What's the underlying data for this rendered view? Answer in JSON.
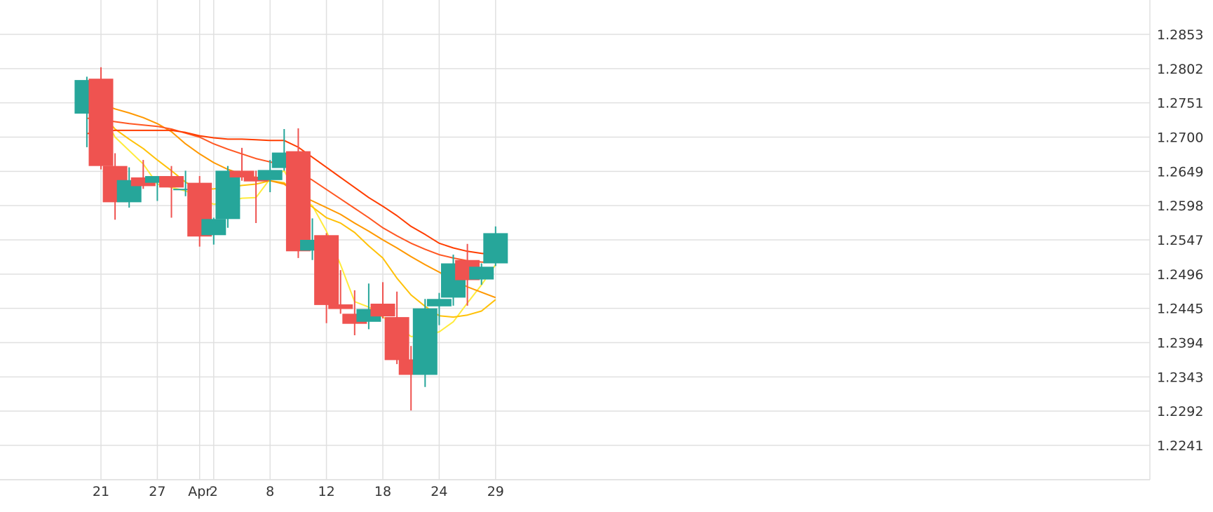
{
  "chart_data": {
    "type": "candlestick",
    "y_ticks": [
      "1.2853",
      "1.2802",
      "1.2751",
      "1.2700",
      "1.2649",
      "1.2598",
      "1.2547",
      "1.2496",
      "1.2445",
      "1.2394",
      "1.2343",
      "1.2292",
      "1.2241"
    ],
    "y_tick_values": [
      1.2853,
      1.2802,
      1.2751,
      1.27,
      1.2649,
      1.2598,
      1.2547,
      1.2496,
      1.2445,
      1.2394,
      1.2343,
      1.2292,
      1.2241
    ],
    "x_ticks": [
      {
        "label": "21",
        "index": 1
      },
      {
        "label": "27",
        "index": 5
      },
      {
        "label": "Apr",
        "index": 8
      },
      {
        "label": "2",
        "index": 9
      },
      {
        "label": "8",
        "index": 13
      },
      {
        "label": "12",
        "index": 17
      },
      {
        "label": "18",
        "index": 21
      },
      {
        "label": "24",
        "index": 25
      },
      {
        "label": "29",
        "index": 29
      }
    ],
    "ylim": [
      1.219,
      1.29
    ],
    "xlim": [
      -0.95,
      30.7
    ],
    "grid": true,
    "colors": {
      "up": "#26a69a",
      "down": "#ef5350",
      "grid": "#e0e0e0"
    },
    "candles": [
      {
        "o": 1.2735,
        "h": 1.279,
        "l": 1.2685,
        "c": 1.2785
      },
      {
        "o": 1.2787,
        "h": 1.2804,
        "l": 1.2652,
        "c": 1.2657
      },
      {
        "o": 1.2657,
        "h": 1.2676,
        "l": 1.2577,
        "c": 1.2603
      },
      {
        "o": 1.2603,
        "h": 1.2655,
        "l": 1.2595,
        "c": 1.2636
      },
      {
        "o": 1.264,
        "h": 1.2666,
        "l": 1.2623,
        "c": 1.2627
      },
      {
        "o": 1.2632,
        "h": 1.2642,
        "l": 1.2605,
        "c": 1.2642
      },
      {
        "o": 1.2642,
        "h": 1.2657,
        "l": 1.258,
        "c": 1.2625
      },
      {
        "o": 1.2623,
        "h": 1.265,
        "l": 1.2612,
        "c": 1.2623
      },
      {
        "o": 1.2632,
        "h": 1.2642,
        "l": 1.2537,
        "c": 1.2552
      },
      {
        "o": 1.2554,
        "h": 1.258,
        "l": 1.254,
        "c": 1.2578
      },
      {
        "o": 1.2578,
        "h": 1.2657,
        "l": 1.2565,
        "c": 1.265
      },
      {
        "o": 1.265,
        "h": 1.2684,
        "l": 1.2635,
        "c": 1.264
      },
      {
        "o": 1.2641,
        "h": 1.265,
        "l": 1.2572,
        "c": 1.2634
      },
      {
        "o": 1.2636,
        "h": 1.2666,
        "l": 1.2618,
        "c": 1.2651
      },
      {
        "o": 1.2654,
        "h": 1.2712,
        "l": 1.265,
        "c": 1.2677
      },
      {
        "o": 1.2679,
        "h": 1.2713,
        "l": 1.252,
        "c": 1.253
      },
      {
        "o": 1.2531,
        "h": 1.2579,
        "l": 1.2517,
        "c": 1.2547
      },
      {
        "o": 1.2554,
        "h": 1.2557,
        "l": 1.2423,
        "c": 1.245
      },
      {
        "o": 1.2451,
        "h": 1.2502,
        "l": 1.2437,
        "c": 1.2444
      },
      {
        "o": 1.2437,
        "h": 1.2472,
        "l": 1.2405,
        "c": 1.2422
      },
      {
        "o": 1.2425,
        "h": 1.2482,
        "l": 1.2414,
        "c": 1.2444
      },
      {
        "o": 1.2452,
        "h": 1.2484,
        "l": 1.243,
        "c": 1.2433
      },
      {
        "o": 1.2432,
        "h": 1.247,
        "l": 1.2362,
        "c": 1.2368
      },
      {
        "o": 1.2369,
        "h": 1.2389,
        "l": 1.2293,
        "c": 1.2346
      },
      {
        "o": 1.2346,
        "h": 1.2459,
        "l": 1.2328,
        "c": 1.2445
      },
      {
        "o": 1.2448,
        "h": 1.2468,
        "l": 1.242,
        "c": 1.2459
      },
      {
        "o": 1.2461,
        "h": 1.2525,
        "l": 1.2449,
        "c": 1.2512
      },
      {
        "o": 1.2517,
        "h": 1.2541,
        "l": 1.2449,
        "c": 1.2487
      },
      {
        "o": 1.2488,
        "h": 1.2512,
        "l": 1.248,
        "c": 1.2507
      },
      {
        "o": 1.2512,
        "h": 1.2567,
        "l": 1.2508,
        "c": 1.2557
      }
    ],
    "series": [
      {
        "color": "#ffeb3b",
        "x": [
          0,
          0.45,
          1,
          1.5,
          2,
          2.5,
          3,
          4,
          5,
          6,
          7,
          8,
          9,
          10,
          11,
          12,
          13,
          14,
          15,
          16,
          17,
          18,
          19,
          20,
          21,
          22,
          23,
          24,
          25,
          26,
          27,
          28,
          29
        ],
        "values": [
          1.277,
          1.276,
          1.2742,
          1.272,
          1.27,
          1.269,
          1.268,
          1.266,
          1.263,
          1.2625,
          1.262,
          1.261,
          1.26,
          1.2604,
          1.2609,
          1.261,
          1.2638,
          1.265,
          1.2612,
          1.2598,
          1.256,
          1.251,
          1.2455,
          1.2447,
          1.2432,
          1.242,
          1.2403,
          1.2405,
          1.241,
          1.2425,
          1.2453,
          1.248,
          1.251
        ]
      },
      {
        "color": "#ffc107",
        "x": [
          0,
          0.45,
          1,
          2,
          3,
          4,
          5,
          6,
          7,
          8,
          9,
          10,
          11,
          12,
          13,
          14,
          15,
          16,
          17,
          18,
          19,
          20,
          21,
          22,
          23,
          24,
          25,
          26,
          27,
          28,
          29
        ],
        "values": [
          1.274,
          1.2737,
          1.2737,
          1.2712,
          1.2697,
          1.2683,
          1.2666,
          1.265,
          1.2633,
          1.2622,
          1.2623,
          1.2625,
          1.2628,
          1.263,
          1.2635,
          1.2632,
          1.261,
          1.2596,
          1.258,
          1.2572,
          1.2558,
          1.2538,
          1.252,
          1.249,
          1.2465,
          1.2448,
          1.2434,
          1.2432,
          1.2435,
          1.2441,
          1.2458
        ]
      },
      {
        "color": "#ff9800",
        "x": [
          0,
          0.45,
          1,
          2,
          3,
          4,
          5,
          6,
          7,
          8,
          9,
          10,
          11,
          12,
          13,
          14,
          15,
          16,
          17,
          18,
          19,
          20,
          21,
          22,
          23,
          24,
          25,
          26,
          27,
          28,
          29
        ],
        "values": [
          1.2755,
          1.2752,
          1.275,
          1.2742,
          1.2736,
          1.2729,
          1.272,
          1.2708,
          1.269,
          1.2675,
          1.2662,
          1.2652,
          1.2645,
          1.264,
          1.2635,
          1.263,
          1.2615,
          1.2605,
          1.2595,
          1.2585,
          1.2572,
          1.256,
          1.2547,
          1.2535,
          1.2522,
          1.251,
          1.2499,
          1.2488,
          1.2477,
          1.2469,
          1.2461
        ]
      },
      {
        "color": "#ff5722",
        "x": [
          0,
          0.45,
          1,
          2,
          3,
          4,
          5,
          6,
          7,
          8,
          9,
          10,
          11,
          12,
          13,
          14,
          15,
          16,
          17,
          18,
          19,
          20,
          21,
          22,
          23,
          24,
          25,
          26,
          27,
          28,
          29
        ],
        "values": [
          1.2728,
          1.2728,
          1.2726,
          1.2723,
          1.272,
          1.2718,
          1.2716,
          1.2712,
          1.2706,
          1.27,
          1.269,
          1.2682,
          1.2675,
          1.2668,
          1.2663,
          1.2658,
          1.2648,
          1.2636,
          1.2622,
          1.2608,
          1.2594,
          1.258,
          1.2565,
          1.2553,
          1.2542,
          1.2533,
          1.2525,
          1.252,
          1.2516,
          1.2514,
          1.2513
        ]
      },
      {
        "color": "#ff3d00",
        "x": [
          0,
          0.45,
          1,
          2,
          3,
          4,
          5,
          6,
          7,
          8,
          9,
          10,
          11,
          12,
          13,
          14,
          15,
          16,
          17,
          18,
          19,
          20,
          21,
          22,
          23,
          24,
          25,
          26,
          27,
          28,
          29
        ],
        "values": [
          1.2705,
          1.2707,
          1.2708,
          1.271,
          1.271,
          1.271,
          1.271,
          1.271,
          1.2707,
          1.2702,
          1.2699,
          1.2697,
          1.2697,
          1.2696,
          1.2695,
          1.2695,
          1.2685,
          1.267,
          1.2655,
          1.264,
          1.2625,
          1.261,
          1.2597,
          1.2583,
          1.2567,
          1.2555,
          1.2542,
          1.2535,
          1.253,
          1.2527,
          1.2525
        ]
      }
    ]
  }
}
